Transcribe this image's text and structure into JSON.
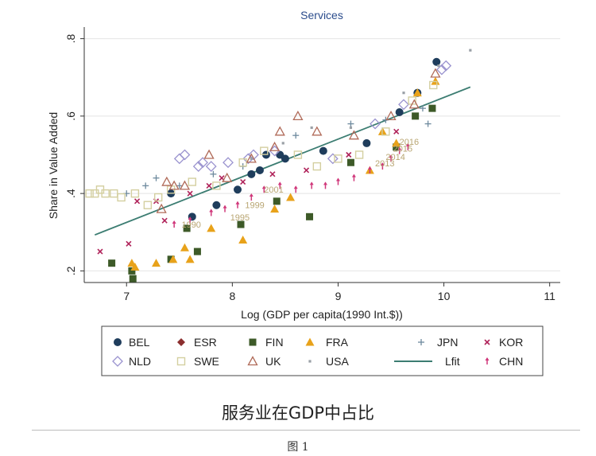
{
  "chart_data": {
    "type": "scatter",
    "title": "Services",
    "xlabel": "Log (GDP per capita(1990 Int.$))",
    "ylabel": "Share in Value Added",
    "xlim": [
      6.6,
      11.1
    ],
    "ylim": [
      0.17,
      0.83
    ],
    "xticks": [
      "7",
      "8",
      "9",
      "10",
      "11"
    ],
    "yticks": [
      ".2",
      ".4",
      ".6",
      ".8"
    ],
    "grid": true,
    "legend_position": "bottom",
    "colors": {
      "title": "#2b4c8c",
      "grid": "#e4e4e4",
      "BEL": "#1f3d5c",
      "ESR": "#8b2f2f",
      "FIN": "#3d5a28",
      "FRA": "#e8a21a",
      "JPN": "#6e8a9e",
      "KOR": "#b0235a",
      "NLD": "#9a93cf",
      "SWE": "#d4cfa0",
      "UK": "#b06a58",
      "USA": "#9aa0a6",
      "Lfit": "#3c7d72",
      "CHN": "#d0377a",
      "year_labels": "#b9a673"
    },
    "series": [
      {
        "name": "BEL",
        "marker": "circle",
        "points": [
          [
            7.42,
            0.4
          ],
          [
            7.62,
            0.34
          ],
          [
            7.85,
            0.37
          ],
          [
            8.05,
            0.41
          ],
          [
            8.18,
            0.45
          ],
          [
            8.26,
            0.46
          ],
          [
            8.32,
            0.5
          ],
          [
            8.45,
            0.5
          ],
          [
            8.5,
            0.49
          ],
          [
            8.86,
            0.51
          ],
          [
            9.27,
            0.53
          ],
          [
            9.58,
            0.61
          ],
          [
            9.75,
            0.66
          ],
          [
            9.93,
            0.74
          ]
        ]
      },
      {
        "name": "ESR",
        "marker": "diamond",
        "points": []
      },
      {
        "name": "FIN",
        "marker": "square",
        "points": [
          [
            6.86,
            0.22
          ],
          [
            7.05,
            0.2
          ],
          [
            7.06,
            0.18
          ],
          [
            7.42,
            0.23
          ],
          [
            7.57,
            0.31
          ],
          [
            7.67,
            0.25
          ],
          [
            8.08,
            0.32
          ],
          [
            8.42,
            0.38
          ],
          [
            8.73,
            0.34
          ],
          [
            9.12,
            0.48
          ],
          [
            9.55,
            0.52
          ],
          [
            9.73,
            0.6
          ],
          [
            9.89,
            0.62
          ]
        ]
      },
      {
        "name": "FRA",
        "marker": "triangle",
        "points": [
          [
            7.05,
            0.22
          ],
          [
            7.08,
            0.21
          ],
          [
            7.28,
            0.22
          ],
          [
            7.44,
            0.23
          ],
          [
            7.55,
            0.26
          ],
          [
            7.6,
            0.23
          ],
          [
            7.8,
            0.31
          ],
          [
            8.1,
            0.28
          ],
          [
            8.4,
            0.36
          ],
          [
            8.55,
            0.39
          ],
          [
            9.3,
            0.46
          ],
          [
            9.42,
            0.56
          ],
          [
            9.55,
            0.53
          ],
          [
            9.75,
            0.66
          ],
          [
            9.92,
            0.69
          ]
        ]
      },
      {
        "name": "JPN",
        "marker": "plus",
        "points": [
          [
            7.0,
            0.4
          ],
          [
            7.18,
            0.42
          ],
          [
            7.28,
            0.44
          ],
          [
            7.5,
            0.42
          ],
          [
            7.82,
            0.45
          ],
          [
            8.1,
            0.47
          ],
          [
            8.6,
            0.55
          ],
          [
            9.12,
            0.58
          ],
          [
            9.45,
            0.59
          ],
          [
            9.8,
            0.62
          ],
          [
            9.85,
            0.58
          ]
        ]
      },
      {
        "name": "KOR",
        "marker": "x",
        "points": [
          [
            6.75,
            0.25
          ],
          [
            7.02,
            0.27
          ],
          [
            7.1,
            0.38
          ],
          [
            7.28,
            0.38
          ],
          [
            7.36,
            0.33
          ],
          [
            7.6,
            0.4
          ],
          [
            7.78,
            0.42
          ],
          [
            7.9,
            0.44
          ],
          [
            8.1,
            0.43
          ],
          [
            8.38,
            0.45
          ],
          [
            8.7,
            0.46
          ],
          [
            9.1,
            0.5
          ],
          [
            9.55,
            0.56
          ]
        ]
      },
      {
        "name": "NLD",
        "marker": "diamond-hollow",
        "points": [
          [
            7.5,
            0.49
          ],
          [
            7.55,
            0.5
          ],
          [
            7.68,
            0.47
          ],
          [
            7.72,
            0.48
          ],
          [
            7.8,
            0.47
          ],
          [
            7.96,
            0.48
          ],
          [
            8.15,
            0.49
          ],
          [
            8.2,
            0.5
          ],
          [
            8.4,
            0.51
          ],
          [
            8.95,
            0.49
          ],
          [
            9.35,
            0.58
          ],
          [
            9.62,
            0.63
          ],
          [
            9.98,
            0.72
          ],
          [
            10.02,
            0.73
          ]
        ]
      },
      {
        "name": "SWE",
        "marker": "square-hollow",
        "points": [
          [
            6.65,
            0.4
          ],
          [
            6.7,
            0.4
          ],
          [
            6.75,
            0.41
          ],
          [
            6.8,
            0.4
          ],
          [
            6.88,
            0.4
          ],
          [
            6.95,
            0.39
          ],
          [
            7.08,
            0.4
          ],
          [
            7.2,
            0.37
          ],
          [
            7.3,
            0.39
          ],
          [
            7.42,
            0.41
          ],
          [
            7.62,
            0.43
          ],
          [
            7.85,
            0.42
          ],
          [
            8.1,
            0.48
          ],
          [
            8.3,
            0.51
          ],
          [
            8.62,
            0.5
          ],
          [
            8.8,
            0.47
          ],
          [
            9.0,
            0.49
          ],
          [
            9.2,
            0.5
          ],
          [
            9.45,
            0.56
          ],
          [
            9.7,
            0.64
          ],
          [
            9.9,
            0.68
          ]
        ]
      },
      {
        "name": "UK",
        "marker": "triangle-hollow",
        "points": [
          [
            7.33,
            0.36
          ],
          [
            7.38,
            0.43
          ],
          [
            7.45,
            0.42
          ],
          [
            7.55,
            0.42
          ],
          [
            7.78,
            0.5
          ],
          [
            7.95,
            0.44
          ],
          [
            8.18,
            0.49
          ],
          [
            8.4,
            0.52
          ],
          [
            8.45,
            0.56
          ],
          [
            8.62,
            0.6
          ],
          [
            8.8,
            0.56
          ],
          [
            9.15,
            0.55
          ],
          [
            9.5,
            0.6
          ],
          [
            9.72,
            0.63
          ],
          [
            9.92,
            0.71
          ]
        ]
      },
      {
        "name": "USA",
        "marker": "dot",
        "points": [
          [
            8.18,
            0.49
          ],
          [
            8.48,
            0.53
          ],
          [
            8.75,
            0.57
          ],
          [
            9.12,
            0.57
          ],
          [
            9.62,
            0.66
          ],
          [
            9.95,
            0.73
          ],
          [
            10.25,
            0.77
          ]
        ]
      },
      {
        "name": "CHN",
        "marker": "arrow",
        "points": [
          [
            7.45,
            0.32
          ],
          [
            7.6,
            0.33
          ],
          [
            7.8,
            0.35
          ],
          [
            7.93,
            0.36
          ],
          [
            8.05,
            0.37
          ],
          [
            8.18,
            0.39
          ],
          [
            8.3,
            0.41
          ],
          [
            8.45,
            0.42
          ],
          [
            8.6,
            0.41
          ],
          [
            8.75,
            0.42
          ],
          [
            8.88,
            0.42
          ],
          [
            9.0,
            0.43
          ],
          [
            9.15,
            0.44
          ],
          [
            9.3,
            0.46
          ],
          [
            9.42,
            0.47
          ],
          [
            9.5,
            0.49
          ],
          [
            9.58,
            0.51
          ],
          [
            9.66,
            0.52
          ]
        ]
      }
    ],
    "fit_line": {
      "name": "Lfit",
      "x": [
        6.7,
        10.25
      ],
      "y": [
        0.293,
        0.675
      ]
    },
    "year_labels": [
      {
        "text": "1990",
        "x": 7.52,
        "y": 0.312
      },
      {
        "text": "1995",
        "x": 7.98,
        "y": 0.33
      },
      {
        "text": "1999",
        "x": 8.12,
        "y": 0.362
      },
      {
        "text": "2001",
        "x": 8.3,
        "y": 0.402
      },
      {
        "text": "2013",
        "x": 9.35,
        "y": 0.47
      },
      {
        "text": "2014",
        "x": 9.45,
        "y": 0.487
      },
      {
        "text": "2015",
        "x": 9.52,
        "y": 0.508
      },
      {
        "text": "2016",
        "x": 9.58,
        "y": 0.526
      }
    ],
    "legend": [
      {
        "name": "BEL",
        "marker": "circle"
      },
      {
        "name": "ESR",
        "marker": "diamond"
      },
      {
        "name": "FIN",
        "marker": "square"
      },
      {
        "name": "FRA",
        "marker": "triangle"
      },
      {
        "name": "JPN",
        "marker": "plus"
      },
      {
        "name": "KOR",
        "marker": "x"
      },
      {
        "name": "NLD",
        "marker": "diamond-hollow"
      },
      {
        "name": "SWE",
        "marker": "square-hollow"
      },
      {
        "name": "UK",
        "marker": "triangle-hollow"
      },
      {
        "name": "USA",
        "marker": "dot"
      },
      {
        "name": "Lfit",
        "marker": "line"
      },
      {
        "name": "CHN",
        "marker": "arrow"
      }
    ]
  },
  "caption": "服务业在GDP中占比",
  "figure_label": "图 1"
}
